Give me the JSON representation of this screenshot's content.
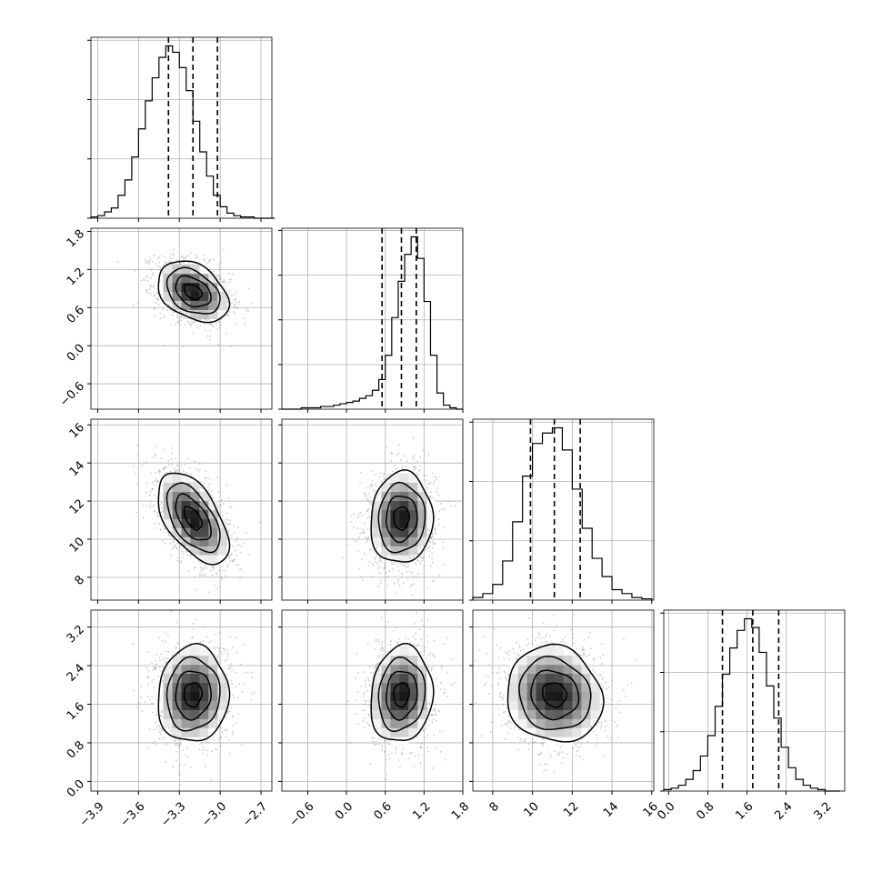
{
  "figure": {
    "type": "corner-plot",
    "parameters": 4,
    "background": "#ffffff",
    "colors": {
      "hist_line": "#000000",
      "grid": "#b0b0b0",
      "scatter": "#9a9a9a",
      "quantile_line": "#000000",
      "density_dark": "#000000",
      "density_light": "#ffffff"
    }
  },
  "chart_data": [
    {
      "type": "histogram",
      "row": 0,
      "col": 0,
      "param": 0,
      "xlim": [
        -3.95,
        -2.62
      ],
      "bins": [
        -3.95,
        -3.9,
        -3.85,
        -3.8,
        -3.75,
        -3.7,
        -3.65,
        -3.6,
        -3.55,
        -3.5,
        -3.45,
        -3.4,
        -3.35,
        -3.3,
        -3.25,
        -3.2,
        -3.15,
        -3.1,
        -3.05,
        -3.0,
        -2.95,
        -2.9,
        -2.85,
        -2.8,
        -2.75,
        -2.7,
        -2.65,
        -2.6
      ],
      "counts": [
        1,
        2,
        5,
        8,
        18,
        30,
        48,
        70,
        92,
        110,
        126,
        135,
        130,
        118,
        100,
        76,
        52,
        33,
        18,
        9,
        4,
        2,
        1,
        1,
        0,
        0,
        0
      ],
      "quantiles": [
        -3.38,
        -3.2,
        -3.02
      ],
      "yticks_count": 3
    },
    {
      "type": "histogram",
      "row": 1,
      "col": 1,
      "param": 1,
      "xlim": [
        -1.0,
        1.8
      ],
      "bins": [
        -1.0,
        -0.9,
        -0.8,
        -0.7,
        -0.6,
        -0.5,
        -0.4,
        -0.3,
        -0.2,
        -0.1,
        0.0,
        0.1,
        0.2,
        0.3,
        0.4,
        0.5,
        0.6,
        0.7,
        0.8,
        0.9,
        1.0,
        1.1,
        1.2,
        1.3,
        1.4,
        1.5,
        1.6,
        1.7,
        1.8
      ],
      "counts": [
        0,
        0,
        0,
        1,
        1,
        1,
        2,
        2,
        3,
        4,
        5,
        6,
        8,
        10,
        14,
        22,
        40,
        68,
        95,
        115,
        128,
        112,
        80,
        40,
        12,
        3,
        1,
        0
      ],
      "quantiles": [
        0.55,
        0.85,
        1.08
      ],
      "yticks_count": 4
    },
    {
      "type": "histogram",
      "row": 2,
      "col": 2,
      "param": 2,
      "xlim": [
        7.0,
        16.1
      ],
      "bins": [
        7.0,
        7.5,
        8.0,
        8.5,
        9.0,
        9.5,
        10.0,
        10.5,
        11.0,
        11.5,
        12.0,
        12.5,
        13.0,
        13.5,
        14.0,
        14.5,
        15.0,
        15.5,
        16.0
      ],
      "counts": [
        2,
        5,
        12,
        30,
        60,
        95,
        120,
        128,
        132,
        115,
        85,
        55,
        32,
        18,
        8,
        5,
        2,
        1
      ],
      "quantiles": [
        9.9,
        11.1,
        12.4
      ],
      "yticks_count": 3
    },
    {
      "type": "histogram",
      "row": 3,
      "col": 3,
      "param": 3,
      "xlim": [
        -0.1,
        3.6
      ],
      "bins": [
        -0.1,
        0.05,
        0.2,
        0.35,
        0.5,
        0.65,
        0.8,
        0.95,
        1.1,
        1.25,
        1.4,
        1.55,
        1.7,
        1.85,
        2.0,
        2.15,
        2.3,
        2.45,
        2.6,
        2.75,
        2.9,
        3.05,
        3.2,
        3.35,
        3.5
      ],
      "counts": [
        1,
        2,
        4,
        8,
        14,
        24,
        38,
        58,
        80,
        98,
        110,
        118,
        112,
        95,
        72,
        50,
        30,
        16,
        8,
        4,
        2,
        1,
        0,
        0
      ],
      "quantiles": [
        1.1,
        1.72,
        2.25
      ],
      "yticks_count": 3
    },
    {
      "type": "scatter-density",
      "row": 1,
      "col": 0,
      "xparam": 0,
      "yparam": 1,
      "xlim": [
        -3.95,
        -2.62
      ],
      "ylim": [
        -1.0,
        1.85
      ],
      "mean": [
        -3.2,
        0.85
      ],
      "sd": [
        0.13,
        0.24
      ],
      "rho": -0.35
    },
    {
      "type": "scatter-density",
      "row": 2,
      "col": 0,
      "xparam": 0,
      "yparam": 2,
      "xlim": [
        -3.95,
        -2.62
      ],
      "ylim": [
        6.8,
        16.3
      ],
      "mean": [
        -3.2,
        11.1
      ],
      "sd": [
        0.13,
        1.2
      ],
      "rho": -0.55
    },
    {
      "type": "scatter-density",
      "row": 2,
      "col": 1,
      "xparam": 1,
      "yparam": 2,
      "xlim": [
        -1.0,
        1.8
      ],
      "ylim": [
        6.8,
        16.3
      ],
      "mean": [
        0.85,
        11.1
      ],
      "sd": [
        0.24,
        1.2
      ],
      "rho": 0.05
    },
    {
      "type": "scatter-density",
      "row": 3,
      "col": 0,
      "xparam": 0,
      "yparam": 3,
      "xlim": [
        -3.95,
        -2.62
      ],
      "ylim": [
        -0.2,
        3.55
      ],
      "mean": [
        -3.2,
        1.8
      ],
      "sd": [
        0.13,
        0.5
      ],
      "rho": 0.05
    },
    {
      "type": "scatter-density",
      "row": 3,
      "col": 1,
      "xparam": 1,
      "yparam": 3,
      "xlim": [
        -1.0,
        1.8
      ],
      "ylim": [
        -0.2,
        3.55
      ],
      "mean": [
        0.85,
        1.8
      ],
      "sd": [
        0.24,
        0.5
      ],
      "rho": 0.1
    },
    {
      "type": "scatter-density",
      "row": 3,
      "col": 2,
      "xparam": 2,
      "yparam": 3,
      "xlim": [
        7.0,
        16.1
      ],
      "ylim": [
        -0.2,
        3.55
      ],
      "mean": [
        11.1,
        1.8
      ],
      "sd": [
        1.2,
        0.5
      ],
      "rho": -0.1
    }
  ],
  "axes": {
    "x_ticks": [
      {
        "values": [
          -3.9,
          -3.6,
          -3.3,
          -3.0,
          -2.7
        ],
        "labels": [
          "−3.9",
          "−3.6",
          "−3.3",
          "−3.0",
          "−2.7"
        ]
      },
      {
        "values": [
          -0.6,
          0.0,
          0.6,
          1.2,
          1.8
        ],
        "labels": [
          "−0.6",
          "0.0",
          "0.6",
          "1.2",
          "1.8"
        ]
      },
      {
        "values": [
          8,
          10,
          12,
          14,
          16
        ],
        "labels": [
          "8",
          "10",
          "12",
          "14",
          "16"
        ]
      },
      {
        "values": [
          0.0,
          0.8,
          1.6,
          2.4,
          3.2
        ],
        "labels": [
          "0.0",
          "0.8",
          "1.6",
          "2.4",
          "3.2"
        ]
      }
    ],
    "y_ticks": [
      null,
      {
        "values": [
          -0.6,
          0.0,
          0.6,
          1.2,
          1.8
        ],
        "labels": [
          "−0.6",
          "0.0",
          "0.6",
          "1.2",
          "1.8"
        ]
      },
      {
        "values": [
          8,
          10,
          12,
          14,
          16
        ],
        "labels": [
          "8",
          "10",
          "12",
          "14",
          "16"
        ]
      },
      {
        "values": [
          0.0,
          0.8,
          1.6,
          2.4,
          3.2
        ],
        "labels": [
          "0.0",
          "0.8",
          "1.6",
          "2.4",
          "3.2"
        ]
      }
    ]
  }
}
